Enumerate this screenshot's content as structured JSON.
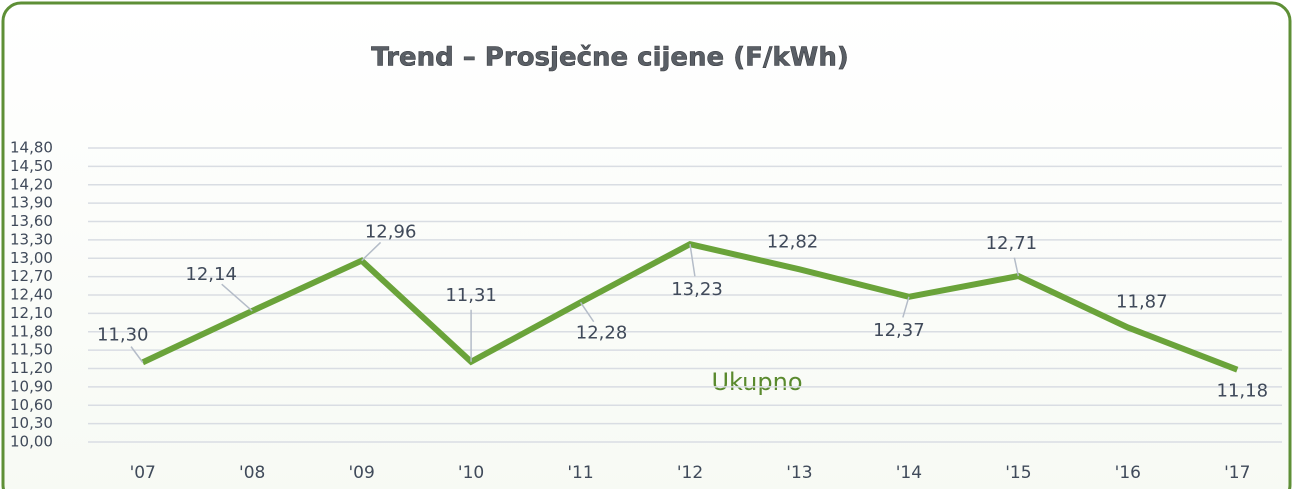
{
  "chart_data": {
    "type": "line",
    "title": "Trend – Prosječne cijene (F/kWh)",
    "categories": [
      "'07",
      "'08",
      "'09",
      "'10",
      "'11",
      "'12",
      "'13",
      "'14",
      "'15",
      "'16",
      "'17"
    ],
    "series": [
      {
        "name": "Ukupno",
        "color": "#6aa33a",
        "values": [
          11.3,
          12.14,
          12.96,
          11.31,
          12.28,
          13.23,
          12.82,
          12.37,
          12.71,
          11.87,
          11.18
        ],
        "value_labels": [
          "11,30",
          "12,14",
          "12,96",
          "11,31",
          "12,28",
          "13,23",
          "12,82",
          "12,37",
          "12,71",
          "11,87",
          "11,18"
        ]
      }
    ],
    "ylim": [
      10,
      14.8
    ],
    "yticks": [
      {
        "value": 10,
        "label": "10,00"
      },
      {
        "value": 10.3,
        "label": "10,30"
      },
      {
        "value": 10.6,
        "label": "10,60"
      },
      {
        "value": 10.9,
        "label": "10,90"
      },
      {
        "value": 11.2,
        "label": "11,20"
      },
      {
        "value": 11.5,
        "label": "11,50"
      },
      {
        "value": 11.8,
        "label": "11,80"
      },
      {
        "value": 12.1,
        "label": "12,10"
      },
      {
        "value": 12.4,
        "label": "12,40"
      },
      {
        "value": 12.7,
        "label": "12,70"
      },
      {
        "value": 13,
        "label": "13,00"
      },
      {
        "value": 13.3,
        "label": "13,30"
      },
      {
        "value": 13.6,
        "label": "13,60"
      },
      {
        "value": 13.9,
        "label": "13,90"
      },
      {
        "value": 14.2,
        "label": "14,20"
      },
      {
        "value": 14.5,
        "label": "14,50"
      },
      {
        "value": 14.8,
        "label": "14,80"
      }
    ],
    "grid": true
  }
}
